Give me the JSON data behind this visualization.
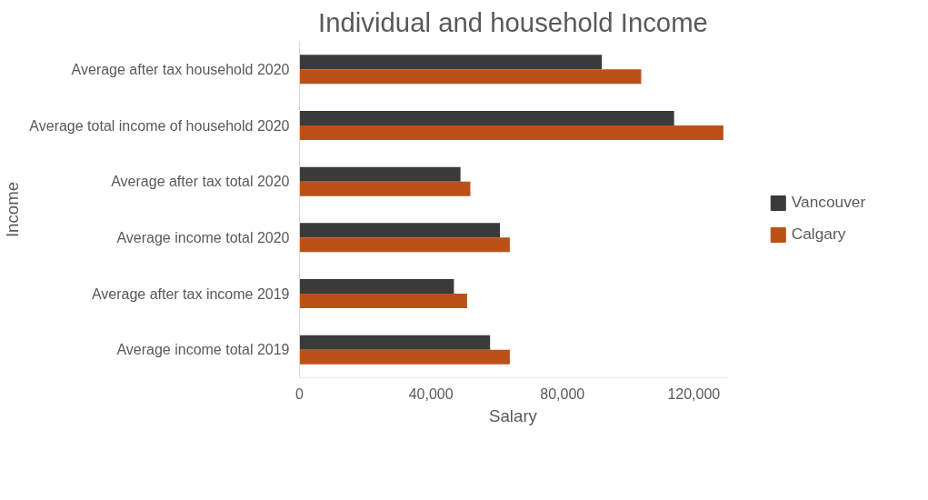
{
  "chart_data": {
    "type": "bar",
    "orientation": "horizontal",
    "title": "Individual and household Income",
    "xlabel": "Salary",
    "ylabel": "Income",
    "categories": [
      "Average after tax household 2020",
      "Average total income of household 2020",
      "Average after tax total 2020",
      "Average income total 2020",
      "Average after tax income 2019",
      "Average income total 2019"
    ],
    "series": [
      {
        "name": "Vancouver",
        "color": "#3a3a3a",
        "values": [
          92000,
          114000,
          49000,
          61000,
          47000,
          58000
        ]
      },
      {
        "name": "Calgary",
        "color": "#bc5117",
        "values": [
          104000,
          129000,
          52000,
          64000,
          51000,
          64000
        ]
      }
    ],
    "xlim": [
      0,
      130000
    ],
    "xticks": [
      {
        "value": 0,
        "label": "0"
      },
      {
        "value": 40000,
        "label": "40,000"
      },
      {
        "value": 80000,
        "label": "80,000"
      },
      {
        "value": 120000,
        "label": "120,000"
      }
    ],
    "grid": false,
    "legend": "right"
  }
}
